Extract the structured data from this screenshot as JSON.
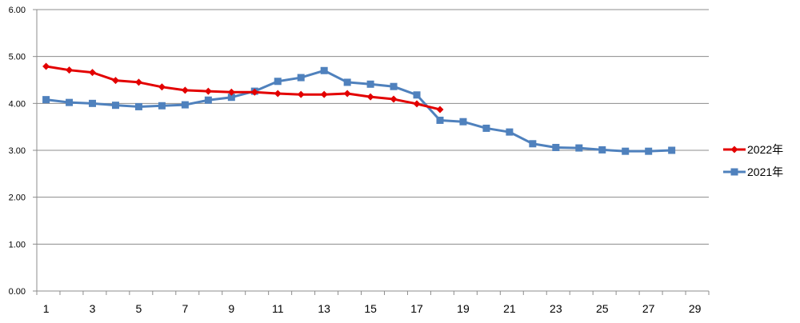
{
  "chart_data": {
    "type": "line",
    "title": "",
    "xlabel": "",
    "ylabel": "",
    "xlim": [
      0.6,
      29.6
    ],
    "ylim": [
      0,
      6
    ],
    "x_ticks": [
      1,
      3,
      5,
      7,
      9,
      11,
      13,
      15,
      17,
      19,
      21,
      23,
      25,
      27,
      29
    ],
    "y_ticks": [
      "0.00",
      "1.00",
      "2.00",
      "3.00",
      "4.00",
      "5.00",
      "6.00"
    ],
    "grid": "horizontal",
    "legend_position": "right",
    "series": [
      {
        "name": "2022年",
        "color": "#E30000",
        "marker": "diamond",
        "x": [
          1,
          2,
          3,
          4,
          5,
          6,
          7,
          8,
          9,
          10,
          11,
          12,
          13,
          14,
          15,
          16,
          17,
          18
        ],
        "values": [
          4.79,
          4.71,
          4.66,
          4.49,
          4.45,
          4.35,
          4.28,
          4.26,
          4.24,
          4.24,
          4.21,
          4.19,
          4.19,
          4.21,
          4.14,
          4.09,
          3.99,
          3.87
        ]
      },
      {
        "name": "2021年",
        "color": "#4F81BD",
        "marker": "square",
        "x": [
          1,
          2,
          3,
          4,
          5,
          6,
          7,
          8,
          9,
          10,
          11,
          12,
          13,
          14,
          15,
          16,
          17,
          18,
          19,
          20,
          21,
          22,
          23,
          24,
          25,
          26,
          27,
          28
        ],
        "values": [
          4.08,
          4.02,
          4.0,
          3.96,
          3.93,
          3.95,
          3.97,
          4.07,
          4.13,
          4.26,
          4.47,
          4.55,
          4.7,
          4.45,
          4.41,
          4.36,
          4.18,
          3.64,
          3.61,
          3.47,
          3.39,
          3.14,
          3.06,
          3.05,
          3.01,
          2.98,
          2.98,
          3.0
        ]
      }
    ]
  }
}
